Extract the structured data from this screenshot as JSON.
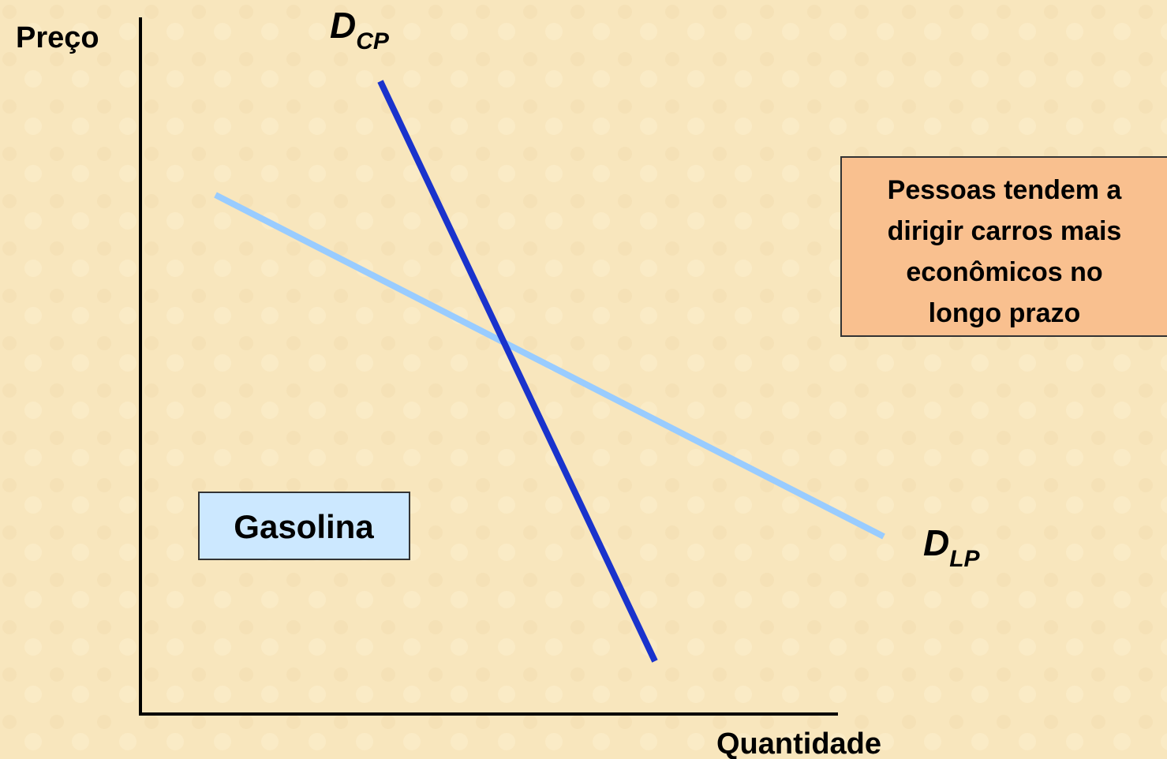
{
  "axes": {
    "y_label": "Preço",
    "x_label": "Quantidade"
  },
  "curves": [
    {
      "label": {
        "main": "D",
        "sub": "CP"
      }
    },
    {
      "label": {
        "main": "D",
        "sub": "LP"
      }
    }
  ],
  "product_box": {
    "text": "Gasolina"
  },
  "note_box": {
    "lines": [
      "Pessoas tendem a",
      "dirigir carros mais",
      "econômicos no",
      "longo prazo"
    ]
  }
}
